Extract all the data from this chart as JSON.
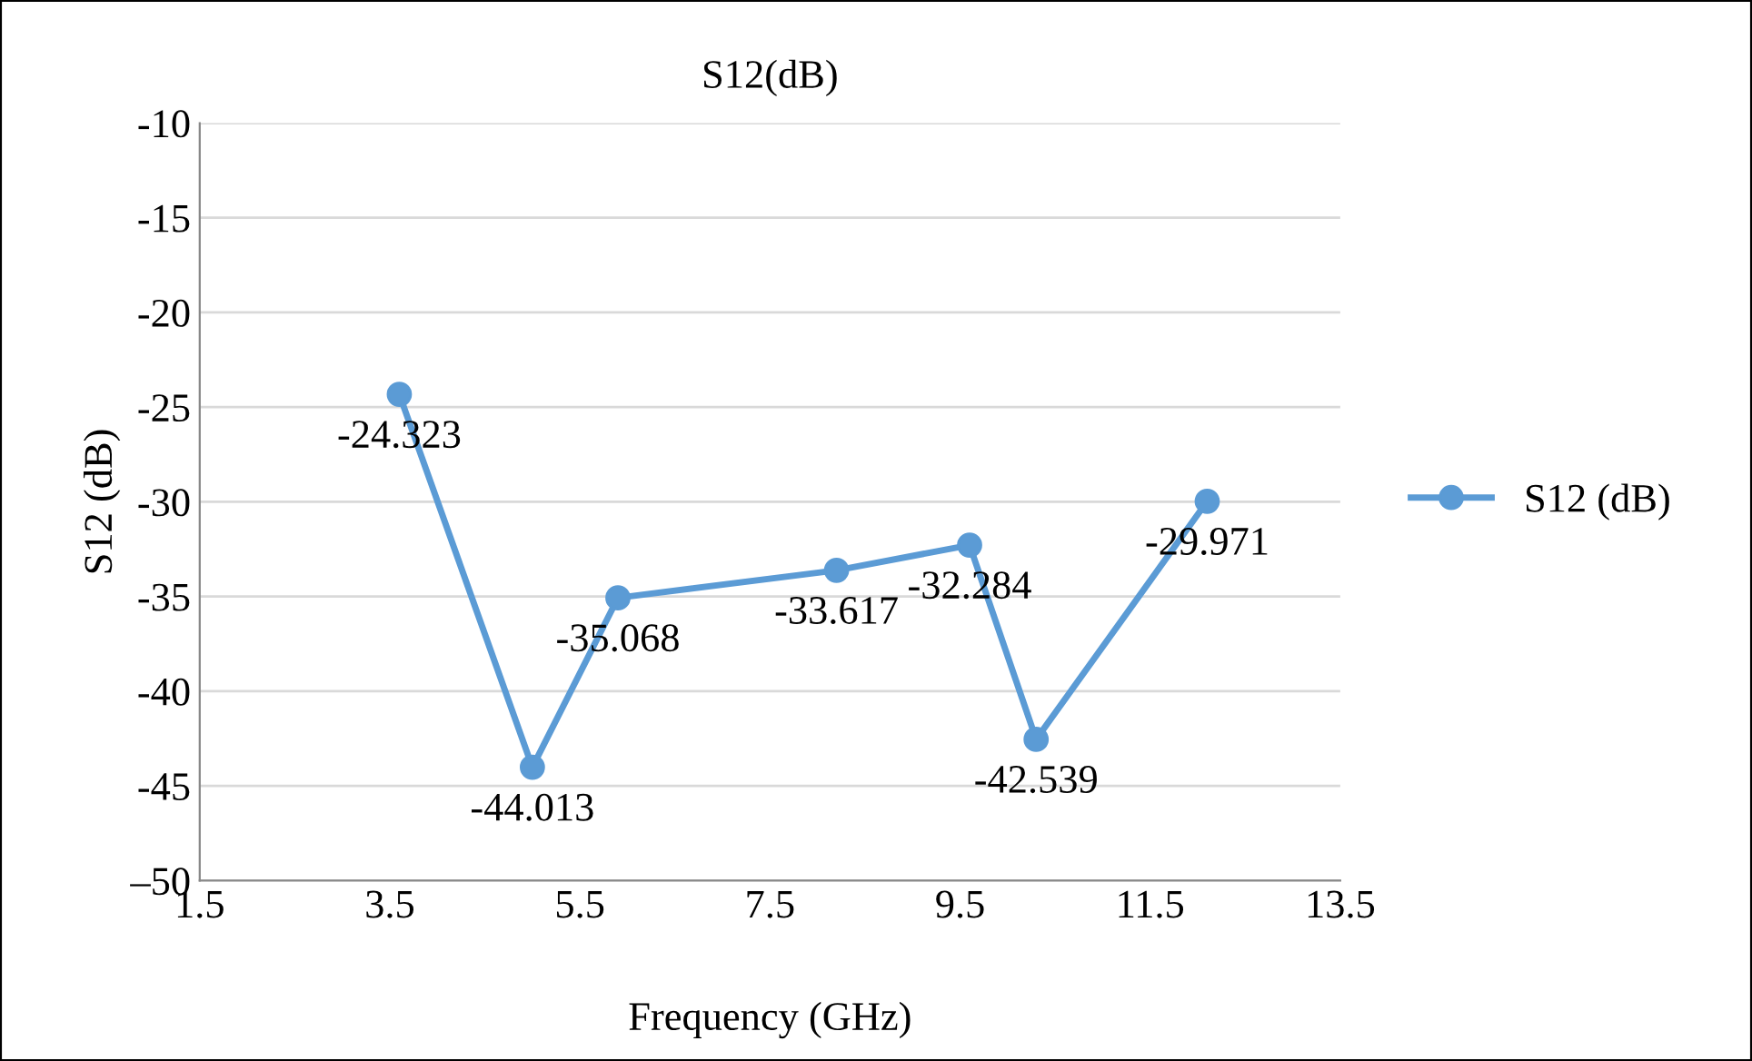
{
  "chart_data": {
    "type": "line",
    "title": "S12(dB)",
    "xlabel": "Frequency (GHz)",
    "ylabel": "S12 (dB)",
    "series": [
      {
        "name": "S12 (dB)",
        "color": "#5b9bd5",
        "x": [
          3.6,
          5.0,
          5.9,
          8.2,
          9.6,
          10.3,
          12.1
        ],
        "values": [
          -24.323,
          -44.013,
          -35.068,
          -33.617,
          -32.284,
          -42.539,
          -29.971
        ]
      }
    ],
    "xlim": [
      1.5,
      13.5
    ],
    "xticks": [
      1.5,
      3.5,
      5.5,
      7.5,
      9.5,
      11.5,
      13.5
    ],
    "ylim": [
      -50,
      -10
    ],
    "yticks": [
      -10,
      -15,
      -20,
      -25,
      -30,
      -35,
      -40,
      -45,
      {
        "value": -50,
        "label": "–50"
      }
    ],
    "grid": "y",
    "legend": "right",
    "marker": "circle",
    "line_style": "solid",
    "data_labels": true
  }
}
